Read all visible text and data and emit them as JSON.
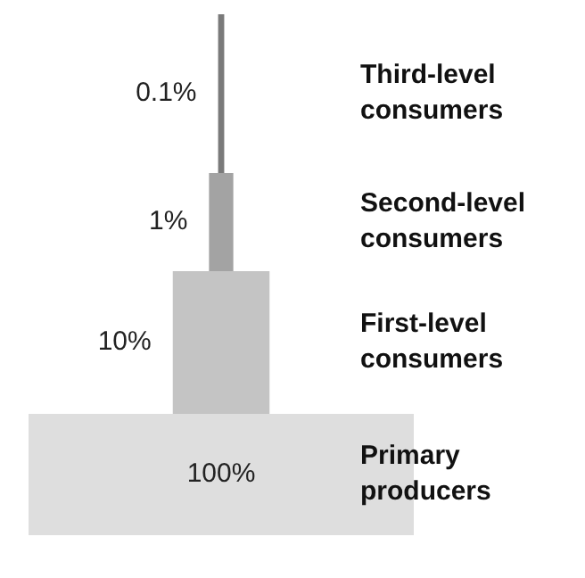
{
  "chart_data": {
    "type": "other",
    "categories": [
      "Third-level consumers",
      "Second-level consumers",
      "First-level consumers",
      "Primary producers"
    ],
    "values": [
      0.1,
      1,
      10,
      100
    ],
    "value_labels": [
      "0.1%",
      "1%",
      "10%",
      "100%"
    ],
    "colors": [
      "#7a7a7a",
      "#a3a3a3",
      "#c4c4c4",
      "#dedede"
    ],
    "data_labels": true
  }
}
